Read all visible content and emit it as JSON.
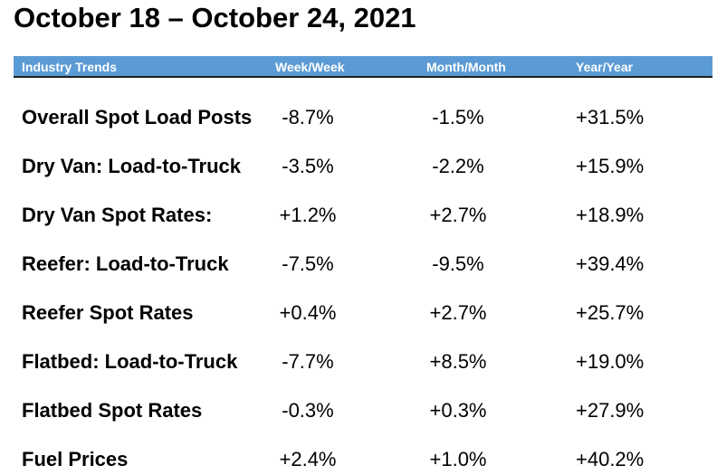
{
  "title": "October 18 – October 24, 2021",
  "header": {
    "label": "Industry Trends",
    "week": "Week/Week",
    "month": "Month/Month",
    "year": "Year/Year"
  },
  "colors": {
    "header_background": "#5b9bd5",
    "header_text": "#ffffff"
  },
  "rows": [
    {
      "label": "Overall Spot Load Posts",
      "week": "-8.7%",
      "month": "-1.5%",
      "year": "+31.5%"
    },
    {
      "label": "Dry Van: Load-to-Truck",
      "week": "-3.5%",
      "month": "-2.2%",
      "year": "+15.9%"
    },
    {
      "label": "Dry Van Spot Rates:",
      "week": "+1.2%",
      "month": "+2.7%",
      "year": "+18.9%"
    },
    {
      "label": "Reefer: Load-to-Truck",
      "week": "-7.5%",
      "month": "-9.5%",
      "year": "+39.4%"
    },
    {
      "label": "Reefer Spot Rates",
      "week": "+0.4%",
      "month": "+2.7%",
      "year": "+25.7%"
    },
    {
      "label": "Flatbed: Load-to-Truck",
      "week": "-7.7%",
      "month": "+8.5%",
      "year": "+19.0%"
    },
    {
      "label": "Flatbed Spot Rates",
      "week": "-0.3%",
      "month": "+0.3%",
      "year": "+27.9%"
    },
    {
      "label": "Fuel Prices",
      "week": "+2.4%",
      "month": "+1.0%",
      "year": "+40.2%"
    }
  ]
}
